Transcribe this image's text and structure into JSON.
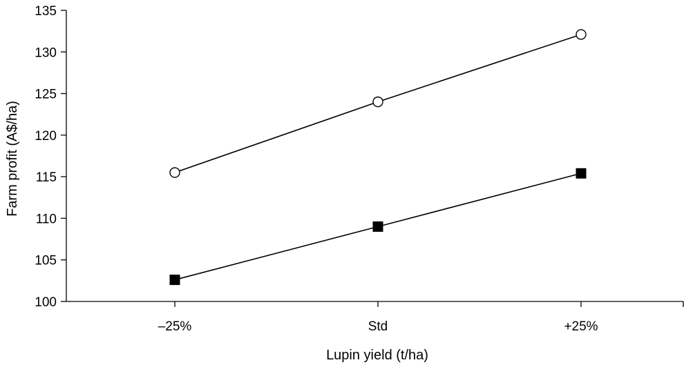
{
  "chart_data": {
    "type": "line",
    "title": "",
    "xlabel": "Lupin yield (t/ha)",
    "ylabel": "Farm profit (A$/ha)",
    "categories": [
      "–25%",
      "Std",
      "+25%"
    ],
    "ylim": [
      100,
      135
    ],
    "yticks": [
      100,
      105,
      110,
      115,
      120,
      125,
      130,
      135
    ],
    "grid": false,
    "series": [
      {
        "marker": "open-circle",
        "values": [
          115.5,
          124.0,
          132.1
        ]
      },
      {
        "marker": "filled-square",
        "values": [
          102.6,
          109.0,
          115.4
        ]
      }
    ]
  }
}
